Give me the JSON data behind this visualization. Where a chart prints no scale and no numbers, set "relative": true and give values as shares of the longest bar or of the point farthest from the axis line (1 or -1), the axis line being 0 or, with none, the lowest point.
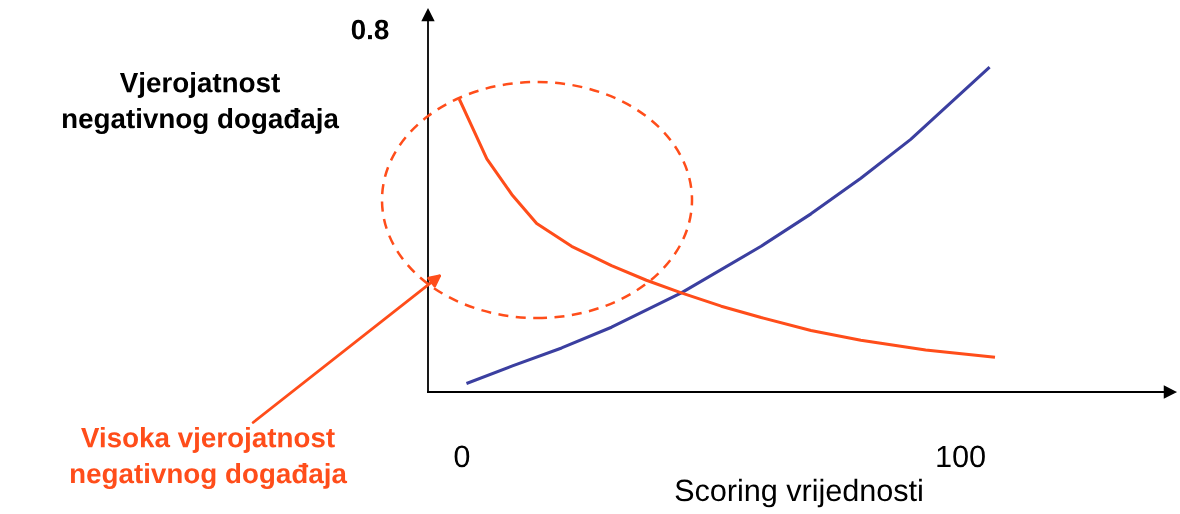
{
  "chart_data": {
    "type": "line",
    "relative": true,
    "xlabel": "Scoring vrijednosti",
    "ylabel": "Vjerojatnost\nnegativnog događaja",
    "xlim": [
      -6.8,
      142
    ],
    "xticks": [
      0,
      100
    ],
    "grid": false,
    "legend": false,
    "marker": "none",
    "line_style": "solid",
    "annotations": [
      "0.8",
      "Visoka vjerojatnost\nnegativnog događaja"
    ],
    "series": [
      {
        "color": "#3b3fa0",
        "x": [
          1.2,
          10,
          20,
          30,
          44,
          60,
          70,
          80,
          90,
          105.6
        ],
        "values": [
          0.028,
          0.08,
          0.136,
          0.2,
          0.306,
          0.45,
          0.55,
          0.66,
          0.78,
          1.0
        ]
      },
      {
        "color": "#ff4d1a",
        "x": [
          -0.4,
          2,
          5,
          10,
          15,
          22,
          30,
          37,
          44,
          52,
          60,
          70,
          80,
          93,
          106.6
        ],
        "values": [
          0.9,
          0.82,
          0.72,
          0.61,
          0.52,
          0.45,
          0.39,
          0.345,
          0.306,
          0.265,
          0.23,
          0.19,
          0.16,
          0.13,
          0.108
        ]
      }
    ]
  }
}
